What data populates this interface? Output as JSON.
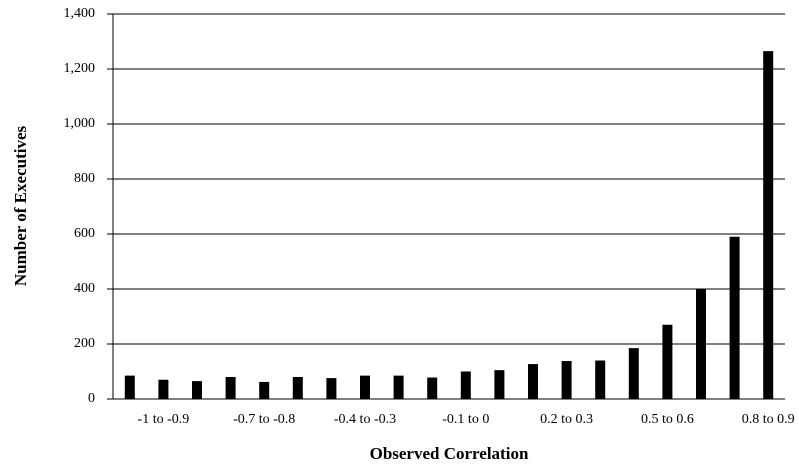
{
  "chart_data": {
    "type": "bar",
    "x_label": "Observed Correlation",
    "y_label": "Number of Executives",
    "categories": [
      null,
      "-1 to -0.9",
      null,
      null,
      "-0.7 to -0.8",
      null,
      null,
      "-0.4 to -0.3",
      null,
      null,
      "-0.1 to 0",
      null,
      null,
      "0.2 to 0.3",
      null,
      null,
      "0.5 to 0.6",
      null,
      null,
      "0.8 to 0.9"
    ],
    "values": [
      85,
      70,
      65,
      80,
      62,
      80,
      76,
      85,
      85,
      78,
      100,
      105,
      127,
      138,
      140,
      185,
      270,
      400,
      590,
      1265
    ],
    "color": "#000000",
    "ylim": [
      0,
      1400
    ],
    "yticks": [
      0,
      200,
      400,
      600,
      800,
      {
        "value": 1000,
        "label": "1,000"
      },
      {
        "value": 1200,
        "label": "1,200"
      },
      {
        "value": 1400,
        "label": "1,400"
      }
    ],
    "grid": true
  }
}
